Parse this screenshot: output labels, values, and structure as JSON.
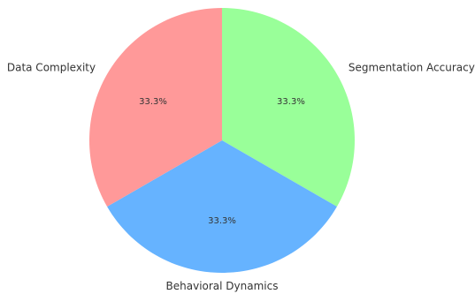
{
  "chart_data": {
    "type": "pie",
    "title": "",
    "slices": [
      {
        "label": "Segmentation Accuracy",
        "value": 33.3,
        "percent_label": "33.3%",
        "color": "#99ff99"
      },
      {
        "label": "Behavioral Dynamics",
        "value": 33.3,
        "percent_label": "33.3%",
        "color": "#66b3ff"
      },
      {
        "label": "Data Complexity",
        "value": 33.3,
        "percent_label": "33.3%",
        "color": "#ff9999"
      }
    ],
    "start_angle_deg": 90,
    "direction": "clockwise",
    "legend": "none"
  }
}
